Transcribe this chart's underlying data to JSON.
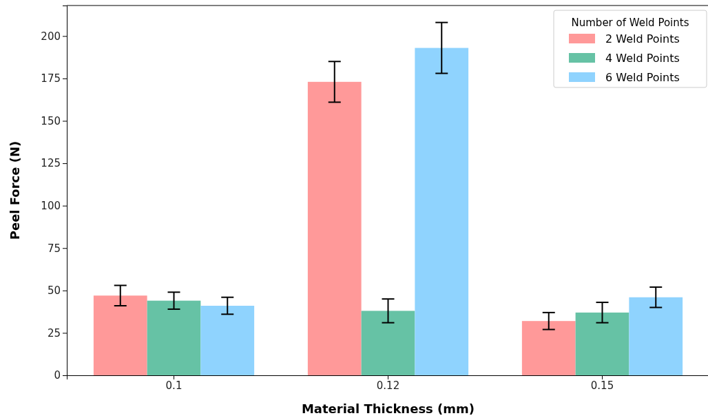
{
  "chart_data": {
    "type": "bar",
    "xlabel": "Material Thickness (mm)",
    "ylabel": "Peel Force (N)",
    "legend_title": "Number of Weld Points",
    "categories": [
      "0.1",
      "0.12",
      "0.15"
    ],
    "series": [
      {
        "name": "2 Weld Points",
        "color": "#ff9999",
        "values": [
          47,
          173,
          32
        ],
        "errors": [
          6,
          12,
          5
        ]
      },
      {
        "name": "4 Weld Points",
        "color": "#66c2a5",
        "values": [
          44,
          38,
          37
        ],
        "errors": [
          5,
          7,
          6
        ]
      },
      {
        "name": "6 Weld Points",
        "color": "#8fd3fe",
        "values": [
          41,
          193,
          46
        ],
        "errors": [
          5,
          15,
          6
        ]
      }
    ],
    "ylim": [
      0,
      218
    ],
    "yticks": [
      0,
      25,
      50,
      75,
      100,
      125,
      150,
      175,
      200
    ],
    "grid": false,
    "legend": "top right"
  }
}
